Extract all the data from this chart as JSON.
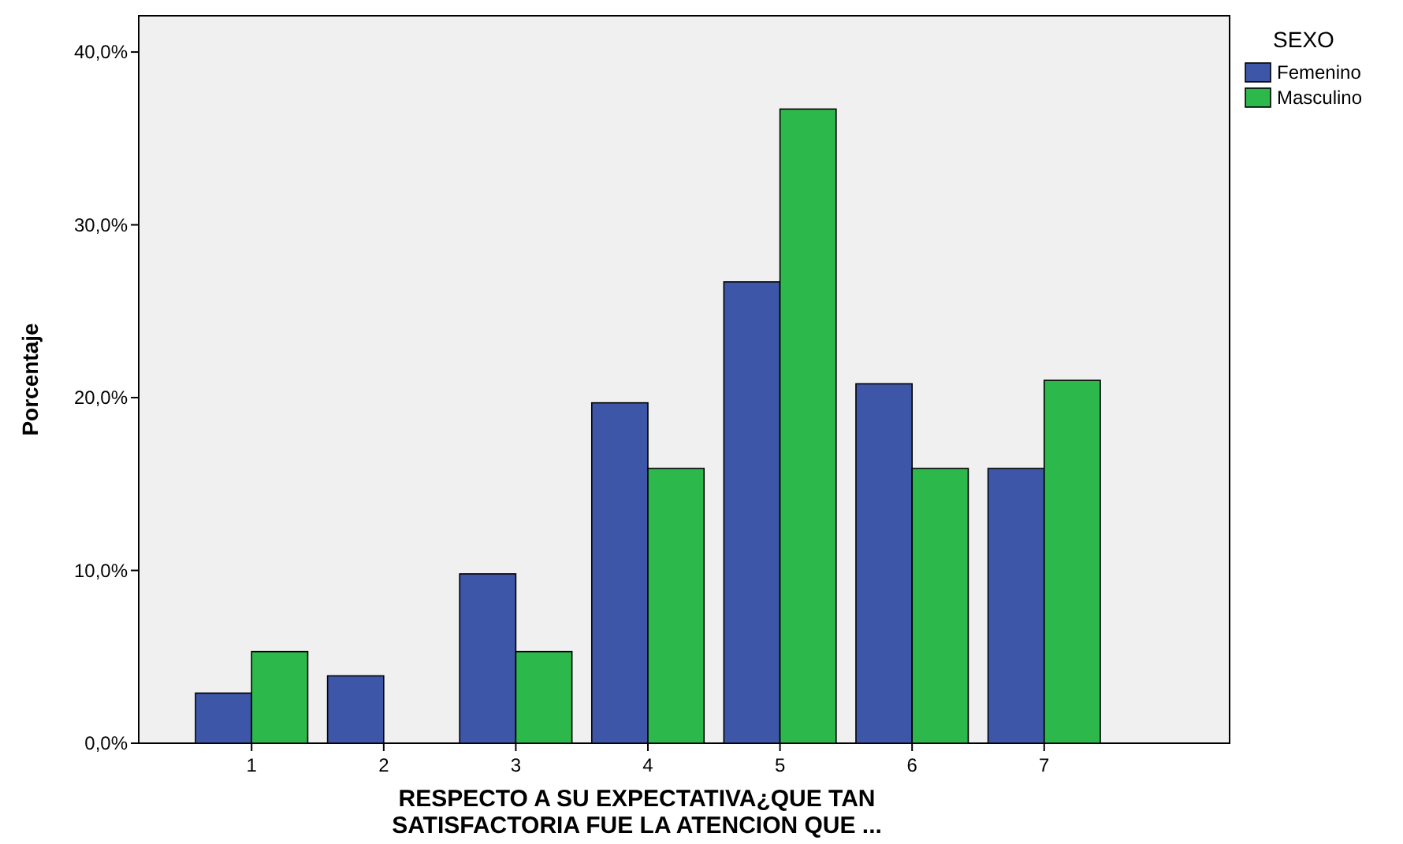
{
  "chart_data": {
    "type": "bar",
    "categories": [
      "1",
      "2",
      "3",
      "4",
      "5",
      "6",
      "7"
    ],
    "series": [
      {
        "name": "Femenino",
        "color": "#3d56a8",
        "values": [
          2.9,
          3.9,
          9.8,
          19.7,
          26.7,
          20.8,
          15.9
        ]
      },
      {
        "name": "Masculino",
        "color": "#2db84b",
        "values": [
          5.3,
          0,
          5.3,
          15.9,
          36.7,
          15.9,
          21.0
        ]
      }
    ],
    "xlabel": "RESPECTO A SU EXPECTATIVA¿QUE TAN\nSATISFACTORIA FUE LA ATENCION QUE ...",
    "ylabel": "Porcentaje",
    "legend_title": "SEXO",
    "legend": "top right",
    "ylim": [
      0,
      42.1
    ],
    "yticks": [
      {
        "value": 0,
        "label": "0,0%"
      },
      {
        "value": 10,
        "label": "10,0%"
      },
      {
        "value": 20,
        "label": "20,0%"
      },
      {
        "value": 30,
        "label": "30,0%"
      },
      {
        "value": 40,
        "label": "40,0%"
      }
    ],
    "grid": false
  }
}
